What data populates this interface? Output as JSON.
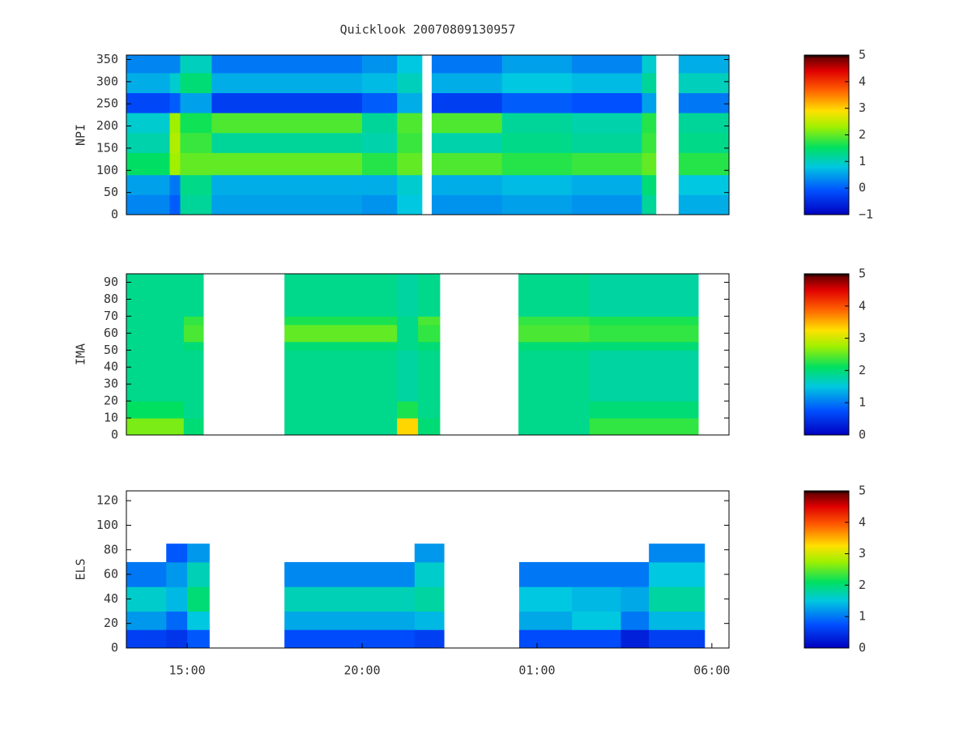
{
  "chart_data": [
    {
      "type": "heatmap",
      "title": "Quicklook 20070809130957",
      "ylabel": "NPI",
      "xlim": [
        13.26,
        30.49
      ],
      "ylim": [
        0,
        360
      ],
      "yticks": [
        0,
        50,
        100,
        150,
        200,
        250,
        300,
        350
      ],
      "zlim": [
        -1,
        5
      ],
      "zticks": [
        {
          "value": -1,
          "label": "−1"
        },
        0,
        1,
        2,
        3,
        4,
        5
      ],
      "xbins": [
        13.26,
        14.5,
        14.8,
        15.7,
        20.0,
        21.0,
        21.71,
        21.99,
        24.0,
        26.0,
        28.0,
        28.4,
        29.05,
        30.49
      ],
      "ybins": [
        0,
        45,
        90,
        140,
        185,
        230,
        275,
        320,
        360
      ],
      "values": [
        [
          0.3,
          0.5,
          1.5,
          1.1,
          0.9,
          -0.2,
          0.6,
          0.3
        ],
        [
          0.0,
          0.2,
          2.3,
          2.4,
          2.3,
          0.0,
          0.9,
          0.3
        ],
        [
          1.2,
          1.3,
          2.0,
          1.8,
          1.6,
          0.5,
          1.4,
          1.0
        ],
        [
          0.5,
          0.6,
          2.0,
          1.2,
          1.9,
          -0.3,
          0.6,
          0.2
        ],
        [
          0.4,
          0.6,
          1.7,
          1.1,
          1.2,
          0.0,
          0.7,
          0.4
        ],
        [
          0.8,
          0.9,
          2.0,
          1.8,
          1.9,
          0.6,
          1.0,
          0.8
        ],
        [
          null,
          null,
          null,
          null,
          null,
          null,
          null,
          null
        ],
        [
          0.4,
          0.6,
          1.9,
          1.1,
          1.9,
          -0.3,
          0.6,
          0.2
        ],
        [
          0.5,
          0.7,
          1.7,
          1.3,
          1.2,
          0.0,
          0.8,
          0.5
        ],
        [
          0.4,
          0.6,
          1.8,
          1.2,
          1.1,
          -0.1,
          0.7,
          0.3
        ],
        [
          1.2,
          1.4,
          2.0,
          1.8,
          1.7,
          0.5,
          1.2,
          0.9
        ],
        [
          null,
          null,
          null,
          null,
          null,
          null,
          null,
          null
        ],
        [
          0.6,
          0.8,
          1.7,
          1.3,
          1.2,
          0.2,
          1.0,
          0.6
        ]
      ]
    },
    {
      "type": "heatmap",
      "ylabel": "IMA",
      "xlim": [
        13.26,
        30.49
      ],
      "ylim": [
        0,
        95
      ],
      "yticks": [
        0,
        10,
        20,
        30,
        40,
        50,
        60,
        70,
        80,
        90
      ],
      "zlim": [
        0,
        5
      ],
      "zticks": [
        0,
        1,
        2,
        3,
        4,
        5
      ],
      "xbins": [
        13.26,
        14.9,
        15.46,
        17.78,
        21.0,
        21.6,
        22.22,
        24.47,
        26.5,
        29.61,
        30.49
      ],
      "ybins": [
        0,
        10,
        20,
        50,
        55,
        65,
        70,
        95
      ],
      "values": [
        [
          2.6,
          2.1,
          1.9,
          1.9,
          1.9,
          1.9,
          1.9
        ],
        [
          2.0,
          1.9,
          1.9,
          2.0,
          2.4,
          2.3,
          1.9
        ],
        [
          null,
          null,
          null,
          null,
          null,
          null,
          null
        ],
        [
          1.9,
          1.9,
          1.9,
          2.0,
          2.5,
          2.2,
          1.9
        ],
        [
          3.3,
          2.2,
          1.8,
          1.9,
          1.9,
          1.9,
          1.8
        ],
        [
          2.0,
          1.9,
          1.9,
          2.0,
          2.3,
          2.4,
          1.9
        ],
        [
          null,
          null,
          null,
          null,
          null,
          null,
          null
        ],
        [
          1.9,
          1.9,
          1.9,
          2.0,
          2.4,
          2.3,
          1.9
        ],
        [
          2.3,
          2.0,
          1.8,
          2.0,
          2.3,
          2.2,
          1.8
        ],
        [
          null,
          null,
          null,
          null,
          null,
          null,
          null
        ]
      ]
    },
    {
      "type": "heatmap",
      "ylabel": "ELS",
      "xlim": [
        13.26,
        30.49
      ],
      "ylim": [
        0,
        128
      ],
      "yticks": [
        0,
        20,
        40,
        60,
        80,
        100,
        120
      ],
      "xticks": [
        {
          "value": 15,
          "label": "15:00"
        },
        {
          "value": 20,
          "label": "20:00"
        },
        {
          "value": 25,
          "label": "01:00"
        },
        {
          "value": 30,
          "label": "06:00"
        }
      ],
      "zlim": [
        0,
        5
      ],
      "zticks": [
        0,
        1,
        2,
        3,
        4,
        5
      ],
      "xbins": [
        13.26,
        14.4,
        15.0,
        15.63,
        17.78,
        21.5,
        22.34,
        24.49,
        26.0,
        27.4,
        28.2,
        29.79,
        30.49
      ],
      "ybins": [
        0,
        15,
        30,
        50,
        70,
        85,
        128
      ],
      "values": [
        [
          0.6,
          1.2,
          1.6,
          1.0,
          null,
          null
        ],
        [
          0.5,
          0.9,
          1.4,
          1.2,
          0.8,
          null
        ],
        [
          0.8,
          1.5,
          2.0,
          1.7,
          1.2,
          null
        ],
        [
          null,
          null,
          null,
          null,
          null,
          null
        ],
        [
          0.7,
          1.3,
          1.7,
          1.1,
          null,
          null
        ],
        [
          0.6,
          1.4,
          1.8,
          1.6,
          1.2,
          null
        ],
        [
          null,
          null,
          null,
          null,
          null,
          null
        ],
        [
          0.7,
          1.3,
          1.5,
          1.0,
          null,
          null
        ],
        [
          0.7,
          1.5,
          1.4,
          1.0,
          null,
          null
        ],
        [
          0.3,
          1.0,
          1.3,
          1.0,
          null,
          null
        ],
        [
          0.6,
          1.4,
          1.8,
          1.5,
          1.1,
          null
        ],
        [
          null,
          null,
          null,
          null,
          null,
          null
        ]
      ]
    }
  ]
}
